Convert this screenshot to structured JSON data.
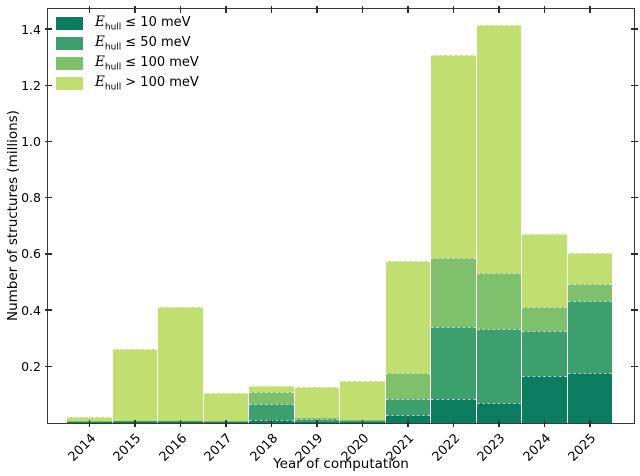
{
  "figure": {
    "background": "#ffffff",
    "frame_color": "#3a3a3a",
    "tick_color": "#2e2e2e"
  },
  "axes": {
    "x_label": "Year of computation",
    "y_label": "Number of structures (millions)"
  },
  "legend": {
    "items": [
      {
        "symbol": "E",
        "subscript": "hull",
        "text": "≤ 10 meV",
        "color": "#0c7c60"
      },
      {
        "symbol": "E",
        "subscript": "hull",
        "text": "≤ 50 meV",
        "color": "#3d9f6d"
      },
      {
        "symbol": "E",
        "subscript": "hull",
        "text": "≤ 100 meV",
        "color": "#7ec06c"
      },
      {
        "symbol": "E",
        "subscript": "hull",
        "text": "> 100 meV",
        "color": "#c0df70"
      }
    ]
  },
  "chart_data": {
    "type": "bar",
    "stacked": true,
    "title": "",
    "xlabel": "Year of computation",
    "ylabel": "Number of structures (millions)",
    "categories": [
      "2014",
      "2015",
      "2016",
      "2017",
      "2018",
      "2019",
      "2020",
      "2021",
      "2022",
      "2023",
      "2024",
      "2025"
    ],
    "series": [
      {
        "name": "E_hull ≤ 10 meV",
        "color": "#0c7c60",
        "values": [
          0.002,
          0.004,
          0.004,
          0.003,
          0.012,
          0.004,
          0.004,
          0.029,
          0.086,
          0.07,
          0.168,
          0.179
        ]
      },
      {
        "name": "E_hull ≤ 50 meV",
        "color": "#3d9f6d",
        "values": [
          0.002,
          0.002,
          0.002,
          0.002,
          0.056,
          0.009,
          0.004,
          0.057,
          0.257,
          0.265,
          0.161,
          0.256
        ]
      },
      {
        "name": "E_hull ≤ 100 meV",
        "color": "#7ec06c",
        "values": [
          0.002,
          0.002,
          0.002,
          0.002,
          0.042,
          0.004,
          0.004,
          0.093,
          0.244,
          0.198,
          0.083,
          0.059
        ]
      },
      {
        "name": "E_hull > 100 meV",
        "color": "#c0df70",
        "values": [
          0.014,
          0.255,
          0.405,
          0.1,
          0.022,
          0.111,
          0.138,
          0.398,
          0.721,
          0.885,
          0.259,
          0.112
        ]
      }
    ],
    "ylim": [
      0,
      1.45
    ],
    "y_ticks": [
      0.2,
      0.4,
      0.6,
      0.8,
      1.0,
      1.2,
      1.4
    ],
    "y_tick_labels": [
      "0.2",
      "0.4",
      "0.6",
      "0.8",
      "1.0",
      "1.2",
      "1.4"
    ],
    "legend_position": "upper left",
    "grid": false
  }
}
